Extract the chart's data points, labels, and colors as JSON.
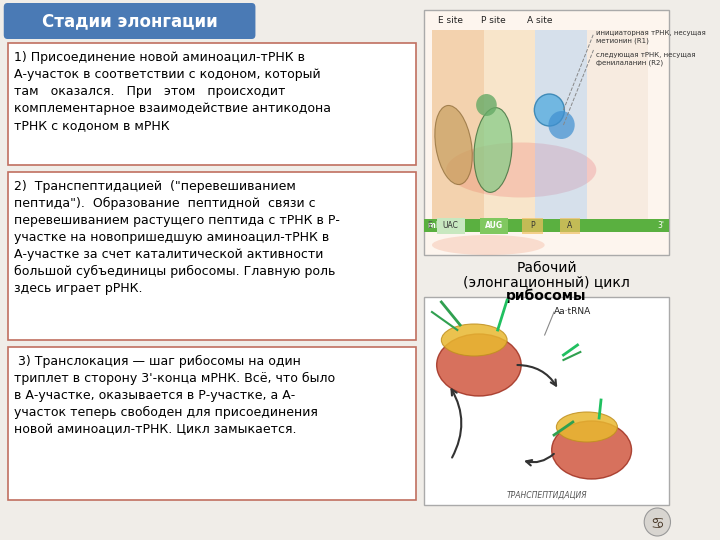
{
  "bg_color": "#f0ede8",
  "title": "Стадии элонгации",
  "title_bg": "#4a7ab5",
  "title_text_color": "#ffffff",
  "border_color": "#c07060",
  "text1": "1) Присоединение новой аминоацил-тРНК в\nА-участок в соответствии с кодоном, который\nтам   оказался.   При   этом   происходит\nкомплементарное взаимодействие антикодона\nтРНК с кодоном в мРНК",
  "text2": "2)  Транспептидацией  (\"перевешиванием\nпептида\").  Образование  пептидной  связи с\nперевешиванием растущего пептида с тРНК в Р-\nучастке на новопришедшую аминоацил-тРНК в\nА-участке за счет каталитической активности\nбольшой субъединицы рибосомы. Главную роль\nздесь играет рРНК.",
  "text3": " 3) Транслокация — шаг рибосомы на один\nтриплет в сторону 3'-конца мРНК. Всё, что было\nв А-участке, оказывается в Р-участке, а А-\nучасток теперь свободен для присоединения\nновой аминоацил-тРНК. Цикл замыкается.",
  "caption_line1": "Рабочий",
  "caption_line2": "(элонгационный) цикл",
  "caption_line3": "рибосомы",
  "font_size_title": 12,
  "font_size_body": 9,
  "font_size_caption": 10,
  "font_size_small": 6.5
}
